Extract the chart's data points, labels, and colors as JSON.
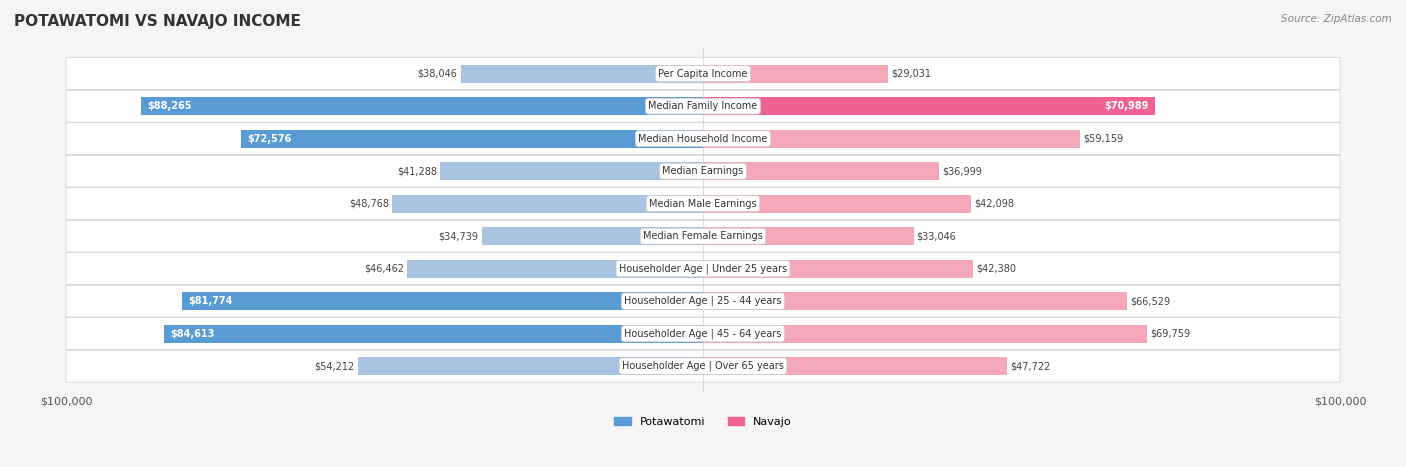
{
  "title": "POTAWATOMI VS NAVAJO INCOME",
  "source": "Source: ZipAtlas.com",
  "categories": [
    "Per Capita Income",
    "Median Family Income",
    "Median Household Income",
    "Median Earnings",
    "Median Male Earnings",
    "Median Female Earnings",
    "Householder Age | Under 25 years",
    "Householder Age | 25 - 44 years",
    "Householder Age | 45 - 64 years",
    "Householder Age | Over 65 years"
  ],
  "potawatomi_values": [
    38046,
    88265,
    72576,
    41288,
    48768,
    34739,
    46462,
    81774,
    84613,
    54212
  ],
  "navajo_values": [
    29031,
    70989,
    59159,
    36999,
    42098,
    33046,
    42380,
    66529,
    69759,
    47722
  ],
  "max_val": 100000,
  "potawatomi_color_light": "#a8c4e0",
  "potawatomi_color_dark": "#5b9bd5",
  "navajo_color_light": "#f4a7b9",
  "navajo_color_dark": "#f06292",
  "bg_color": "#f5f5f5",
  "row_bg": "#ffffff",
  "label_bg": "#ffffff",
  "legend_potawatomi": "Potawatomi",
  "legend_navajo": "Navajo",
  "threshold_dark_label": 70000
}
